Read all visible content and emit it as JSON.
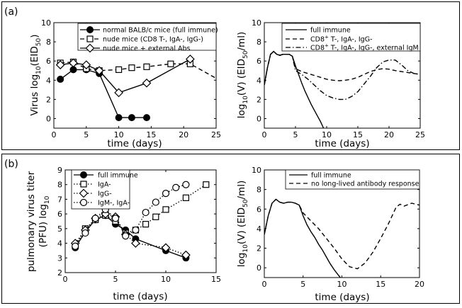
{
  "panels": [
    {
      "label": "(a)"
    },
    {
      "label": "(b)"
    }
  ],
  "chart_data": [
    {
      "type": "line",
      "panel": "(a)",
      "position": "left",
      "xlabel": "time (days)",
      "ylabel": "Virus log10(EID50)",
      "ylabel_parts": {
        "a": "Virus log",
        "b": "10",
        "c": "(EID",
        "d": "50",
        "e": ")"
      },
      "xlim": [
        0,
        25
      ],
      "ylim": [
        -1,
        10
      ],
      "xticks": [
        0,
        5,
        10,
        15,
        20,
        25
      ],
      "yticks": [
        0,
        2,
        4,
        6,
        8,
        10
      ],
      "legend_position": "top-right",
      "series": [
        {
          "name": "normal BALB/c mice (full immune)",
          "style": "solid",
          "marker": "filled-circle",
          "x": [
            1,
            3,
            5,
            7,
            10,
            12,
            14.3
          ],
          "y": [
            4.1,
            5.1,
            5.1,
            4.7,
            0.1,
            0.1,
            0.1
          ]
        },
        {
          "name": "nude mice (CD8 T-, IgA-, IgG-)",
          "style": "dashed",
          "marker": "square",
          "x": [
            1,
            3,
            5,
            7,
            10,
            12,
            14.3,
            18,
            21
          ],
          "y": [
            5.8,
            5.9,
            5.2,
            5.0,
            5.1,
            5.3,
            5.4,
            5.7,
            5.7
          ],
          "x_line": [
            1,
            3,
            5,
            7,
            10,
            12,
            14.3,
            18,
            21,
            25
          ],
          "y_line": [
            5.8,
            5.9,
            5.2,
            5.0,
            5.1,
            5.3,
            5.4,
            5.7,
            5.7,
            4.2
          ]
        },
        {
          "name": "nude mice + external Abs",
          "style": "solid",
          "marker": "diamond",
          "x": [
            1,
            3,
            5,
            7,
            10,
            14.3,
            21
          ],
          "y": [
            5.6,
            5.8,
            5.6,
            5.0,
            2.7,
            3.7,
            6.2
          ]
        }
      ]
    },
    {
      "type": "line",
      "panel": "(a)",
      "position": "right",
      "xlabel": "time (days)",
      "ylabel": "log10(V) (EID50/ml)",
      "ylabel_parts": {
        "a": "log",
        "b": "10",
        "c": "(V) (EID",
        "d": "50",
        "e": "/ml)"
      },
      "xlim": [
        0,
        25
      ],
      "ylim": [
        -1,
        10
      ],
      "xticks": [
        0,
        5,
        10,
        15,
        20,
        25
      ],
      "yticks": [
        0,
        2,
        4,
        6,
        8,
        10
      ],
      "legend_position": "top-right",
      "series": [
        {
          "name": "full immune",
          "legend": {
            "pre": "full immune",
            "sup": "",
            "post": ""
          },
          "style": "solid",
          "x": [
            0,
            0.5,
            1,
            1.5,
            2,
            2.5,
            3,
            3.5,
            4,
            4.5,
            5,
            5.5,
            6,
            6.5,
            7,
            7.5,
            8,
            8.5,
            9,
            9.5
          ],
          "y": [
            3.5,
            5.3,
            6.7,
            7.0,
            6.7,
            6.6,
            6.7,
            6.7,
            6.7,
            6.5,
            5.5,
            4.6,
            3.7,
            2.9,
            2.2,
            1.5,
            0.9,
            0.3,
            -0.3,
            -1.0
          ]
        },
        {
          "name": "CD8+ T-, IgA-, IgG-",
          "legend": {
            "pre": "CD8",
            "sup": "+",
            "post": " T-, IgA-, IgG-"
          },
          "style": "dashed",
          "x": [
            0,
            0.5,
            1,
            1.5,
            2,
            2.5,
            3,
            3.5,
            4,
            4.5,
            5,
            6,
            7,
            8,
            9,
            10,
            11,
            12,
            13,
            14,
            15,
            16,
            17,
            18,
            19,
            20,
            21,
            22,
            23,
            24,
            25
          ],
          "y": [
            3.5,
            5.3,
            6.7,
            7.0,
            6.7,
            6.6,
            6.7,
            6.7,
            6.7,
            6.5,
            5.2,
            4.9,
            4.7,
            4.5,
            4.3,
            4.1,
            4.0,
            3.95,
            4.0,
            4.1,
            4.3,
            4.6,
            4.9,
            5.1,
            5.2,
            5.15,
            5.0,
            4.9,
            4.8,
            4.7,
            4.6
          ]
        },
        {
          "name": "CD8+ T-, IgA-, IgG-, external IgM",
          "legend": {
            "pre": "CD8",
            "sup": "+",
            "post": " T-, IgA-, IgG-, external IgM"
          },
          "style": "dashdot",
          "x": [
            0,
            0.5,
            1,
            1.5,
            2,
            2.5,
            3,
            3.5,
            4,
            4.5,
            5,
            6,
            7,
            8,
            9,
            10,
            11,
            12,
            13,
            14,
            15,
            16,
            17,
            18,
            19,
            20,
            21,
            22,
            23,
            24,
            25
          ],
          "y": [
            3.5,
            5.3,
            6.7,
            7.0,
            6.7,
            6.6,
            6.7,
            6.7,
            6.7,
            6.5,
            5.0,
            4.6,
            4.1,
            3.5,
            2.9,
            2.4,
            2.15,
            2.0,
            2.0,
            2.3,
            2.8,
            3.6,
            4.4,
            5.3,
            5.9,
            6.1,
            6.1,
            5.6,
            5.0,
            4.7,
            4.6
          ]
        }
      ]
    },
    {
      "type": "line",
      "panel": "(b)",
      "position": "left",
      "xlabel": "time (days)",
      "ylabel": "pulmonary virus titer (PFU) log10",
      "ylabel_line1": "pulmonary virus titer",
      "ylabel_parts": {
        "a": "(PFU) log",
        "b": "10"
      },
      "xlim": [
        0,
        15
      ],
      "ylim": [
        2,
        9
      ],
      "xticks": [
        0,
        5,
        10,
        15
      ],
      "yticks": [
        2,
        3,
        4,
        5,
        6,
        7,
        8,
        9
      ],
      "legend_position": "top-left",
      "series": [
        {
          "name": "full immune",
          "style": "solid",
          "marker": "filled-circle",
          "x": [
            1,
            2,
            3,
            4,
            5,
            6,
            7,
            10,
            12
          ],
          "y": [
            3.7,
            4.8,
            5.6,
            5.9,
            5.3,
            4.9,
            4.3,
            3.5,
            3.0
          ]
        },
        {
          "name": "IgA-",
          "style": "dotted",
          "marker": "square",
          "x": [
            1,
            2,
            3,
            4,
            5,
            6,
            7,
            8,
            9,
            10,
            12,
            14
          ],
          "y": [
            3.8,
            5.0,
            5.6,
            5.9,
            5.5,
            4.7,
            4.9,
            5.3,
            5.8,
            6.3,
            7.1,
            8.0
          ]
        },
        {
          "name": "IgG-",
          "style": "dotted",
          "marker": "diamond",
          "x": [
            1,
            2,
            3,
            4,
            5,
            6,
            7,
            10,
            12
          ],
          "y": [
            4.0,
            4.9,
            5.7,
            6.0,
            5.8,
            4.6,
            4.0,
            3.7,
            3.2
          ]
        },
        {
          "name": "IgM-, IgA-",
          "style": "dotted",
          "marker": "circle",
          "x": [
            1,
            2,
            3,
            4,
            5,
            6,
            7,
            8,
            9,
            10,
            11,
            12
          ],
          "y": [
            3.8,
            4.7,
            5.7,
            6.3,
            5.7,
            4.5,
            4.9,
            6.1,
            6.8,
            7.4,
            7.8,
            8.0
          ]
        }
      ]
    },
    {
      "type": "line",
      "panel": "(b)",
      "position": "right",
      "xlabel": "time (days)",
      "ylabel": "log10(V) (EID50/ml)",
      "ylabel_parts": {
        "a": "log",
        "b": "10",
        "c": "(V) (EID",
        "d": "50",
        "e": "/ml)"
      },
      "xlim": [
        0,
        20
      ],
      "ylim": [
        -1,
        10
      ],
      "xticks": [
        0,
        5,
        10,
        15,
        20
      ],
      "yticks": [
        0,
        2,
        4,
        6,
        8,
        10
      ],
      "legend_position": "top-right",
      "series": [
        {
          "name": "full immune",
          "style": "solid",
          "x": [
            0,
            0.5,
            1,
            1.5,
            2,
            2.5,
            3,
            3.5,
            4,
            4.5,
            5,
            5.5,
            6,
            6.5,
            7,
            7.5,
            8,
            8.5,
            9,
            9.5,
            9.8
          ],
          "y": [
            3.4,
            5.3,
            6.6,
            7.0,
            6.7,
            6.6,
            6.7,
            6.7,
            6.6,
            6.4,
            5.3,
            4.4,
            3.7,
            3.1,
            2.4,
            1.8,
            1.1,
            0.4,
            -0.2,
            -0.7,
            -1.0
          ]
        },
        {
          "name": "no long-lived antibody response",
          "style": "dashed",
          "x": [
            0,
            0.5,
            1,
            1.5,
            2,
            2.5,
            3,
            3.5,
            4,
            4.5,
            5,
            6,
            7,
            8,
            9,
            10,
            11,
            12,
            13,
            14,
            15,
            16,
            17,
            17.5,
            18,
            19,
            20
          ],
          "y": [
            3.4,
            5.3,
            6.6,
            7.0,
            6.7,
            6.6,
            6.7,
            6.7,
            6.6,
            6.4,
            5.6,
            4.8,
            4.0,
            3.0,
            2.0,
            0.9,
            0.1,
            -0.1,
            0.5,
            1.6,
            3.0,
            4.5,
            6.2,
            6.5,
            6.3,
            6.6,
            6.4
          ]
        }
      ]
    }
  ]
}
